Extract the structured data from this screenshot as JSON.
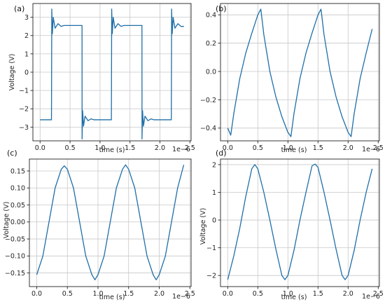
{
  "colors": {
    "line": "#1f6fa8",
    "grid": "#c8c8c8",
    "frame": "#222222"
  },
  "chart_data": [
    {
      "panel": "(a)",
      "type": "line",
      "xlabel": "time (s)",
      "ylabel": "Voltage (V)",
      "x_offset_label": "1e−6",
      "xlim": [
        -0.12,
        2.52
      ],
      "ylim": [
        -3.75,
        3.75
      ],
      "xticks": [
        0.0,
        0.5,
        1.0,
        1.5,
        2.0,
        2.5
      ],
      "xtick_labels": [
        "0.0",
        "0.5",
        "1.0",
        "1.5",
        "2.0",
        "2.5"
      ],
      "yticks": [
        -3,
        -2,
        -1,
        0,
        1,
        2,
        3
      ],
      "ytick_labels": [
        "−3",
        "−2",
        "−1",
        "0",
        "1",
        "2",
        "3"
      ],
      "grid": true,
      "series": [
        {
          "x": [
            0.0,
            0.19,
            0.195,
            0.205,
            0.22,
            0.25,
            0.3,
            0.35,
            0.4,
            0.7,
            0.701,
            0.71,
            0.725,
            0.75,
            0.8,
            0.85,
            0.9,
            1.19,
            1.195,
            1.205,
            1.22,
            1.25,
            1.3,
            1.35,
            1.4,
            1.7,
            1.701,
            1.71,
            1.725,
            1.75,
            1.8,
            1.85,
            1.9,
            2.19,
            2.195,
            2.205,
            2.22,
            2.25,
            2.3,
            2.35,
            2.4
          ],
          "y": [
            -2.6,
            -2.6,
            3.45,
            2.1,
            3.0,
            2.4,
            2.65,
            2.5,
            2.55,
            2.55,
            -3.65,
            -2.1,
            -2.95,
            -2.4,
            -2.65,
            -2.55,
            -2.6,
            -2.6,
            3.45,
            2.1,
            3.0,
            2.4,
            2.65,
            2.5,
            2.55,
            2.55,
            -3.65,
            -2.1,
            -2.95,
            -2.4,
            -2.65,
            -2.55,
            -2.6,
            -2.6,
            3.45,
            2.1,
            3.0,
            2.4,
            2.65,
            2.5,
            2.5
          ]
        }
      ]
    },
    {
      "panel": "(b)",
      "type": "line",
      "xlabel": "time (s)",
      "ylabel": "",
      "x_offset_label": "1e−6",
      "xlim": [
        -0.12,
        2.52
      ],
      "ylim": [
        -0.49,
        0.48
      ],
      "xticks": [
        0.0,
        0.5,
        1.0,
        1.5,
        2.0,
        2.5
      ],
      "xtick_labels": [
        "0.0",
        "0.5",
        "1.0",
        "1.5",
        "2.0",
        "2.5"
      ],
      "yticks": [
        -0.4,
        -0.2,
        0.0,
        0.2,
        0.4
      ],
      "ytick_labels": [
        "−0.4",
        "−0.2",
        "0.0",
        "0.2",
        "0.4"
      ],
      "grid": true,
      "series": [
        {
          "x": [
            0.0,
            0.05,
            0.1,
            0.2,
            0.3,
            0.4,
            0.5,
            0.55,
            0.6,
            0.7,
            0.8,
            0.9,
            1.0,
            1.05,
            1.1,
            1.2,
            1.3,
            1.4,
            1.5,
            1.55,
            1.6,
            1.7,
            1.8,
            1.9,
            2.0,
            2.05,
            2.1,
            2.2,
            2.3,
            2.4
          ],
          "y": [
            -0.4,
            -0.45,
            -0.3,
            -0.05,
            0.13,
            0.27,
            0.4,
            0.44,
            0.26,
            0.0,
            -0.18,
            -0.32,
            -0.43,
            -0.46,
            -0.3,
            -0.05,
            0.13,
            0.27,
            0.4,
            0.44,
            0.26,
            0.0,
            -0.18,
            -0.32,
            -0.43,
            -0.46,
            -0.3,
            -0.05,
            0.13,
            0.3
          ]
        }
      ]
    },
    {
      "panel": "(c)",
      "type": "line",
      "xlabel": "time (s)",
      "ylabel": "Voltage (V)",
      "x_offset_label": "1e−6",
      "xlim": [
        -0.12,
        2.52
      ],
      "ylim": [
        -0.19,
        0.185
      ],
      "xticks": [
        0.0,
        0.5,
        1.0,
        1.5,
        2.0,
        2.5
      ],
      "xtick_labels": [
        "0.0",
        "0.5",
        "1.0",
        "1.5",
        "2.0",
        "2.5"
      ],
      "yticks": [
        -0.15,
        -0.1,
        -0.05,
        0.0,
        0.05,
        0.1,
        0.15
      ],
      "ytick_labels": [
        "−0.15",
        "−0.10",
        "−0.05",
        "0.00",
        "0.05",
        "0.10",
        "0.15"
      ],
      "grid": true,
      "series": [
        {
          "x": [
            0.0,
            0.1,
            0.2,
            0.3,
            0.4,
            0.45,
            0.5,
            0.6,
            0.7,
            0.8,
            0.9,
            0.95,
            1.0,
            1.1,
            1.2,
            1.3,
            1.4,
            1.45,
            1.5,
            1.6,
            1.7,
            1.8,
            1.9,
            1.95,
            2.0,
            2.1,
            2.2,
            2.3,
            2.4
          ],
          "y": [
            -0.155,
            -0.1,
            0.0,
            0.1,
            0.155,
            0.165,
            0.155,
            0.1,
            0.0,
            -0.1,
            -0.155,
            -0.17,
            -0.155,
            -0.1,
            0.0,
            0.1,
            0.155,
            0.168,
            0.155,
            0.1,
            0.0,
            -0.1,
            -0.155,
            -0.17,
            -0.155,
            -0.1,
            0.0,
            0.1,
            0.168
          ]
        }
      ]
    },
    {
      "panel": "(d)",
      "type": "line",
      "xlabel": "time (s)",
      "ylabel": "Voltage (V)",
      "x_offset_label": "1e−6",
      "xlim": [
        -0.12,
        2.52
      ],
      "ylim": [
        -2.4,
        2.2
      ],
      "xticks": [
        0.0,
        0.5,
        1.0,
        1.5,
        2.0,
        2.5
      ],
      "xtick_labels": [
        "0.0",
        "0.5",
        "1.0",
        "1.5",
        "2.0",
        "2.5"
      ],
      "yticks": [
        -2,
        -1,
        0,
        1,
        2
      ],
      "ytick_labels": [
        "−2",
        "−1",
        "0",
        "1",
        "2"
      ],
      "grid": true,
      "series": [
        {
          "x": [
            0.0,
            0.1,
            0.2,
            0.3,
            0.4,
            0.45,
            0.5,
            0.6,
            0.7,
            0.8,
            0.9,
            0.95,
            1.0,
            1.1,
            1.2,
            1.3,
            1.4,
            1.45,
            1.5,
            1.6,
            1.7,
            1.8,
            1.9,
            1.95,
            2.0,
            2.1,
            2.2,
            2.3,
            2.4
          ],
          "y": [
            -2.15,
            -1.3,
            -0.3,
            0.85,
            1.85,
            2.0,
            1.85,
            1.0,
            0.0,
            -1.05,
            -2.0,
            -2.15,
            -2.0,
            -1.1,
            0.0,
            1.0,
            1.95,
            2.02,
            1.9,
            1.0,
            0.0,
            -1.05,
            -2.0,
            -2.15,
            -2.0,
            -1.1,
            0.0,
            1.0,
            1.85
          ]
        }
      ]
    }
  ]
}
